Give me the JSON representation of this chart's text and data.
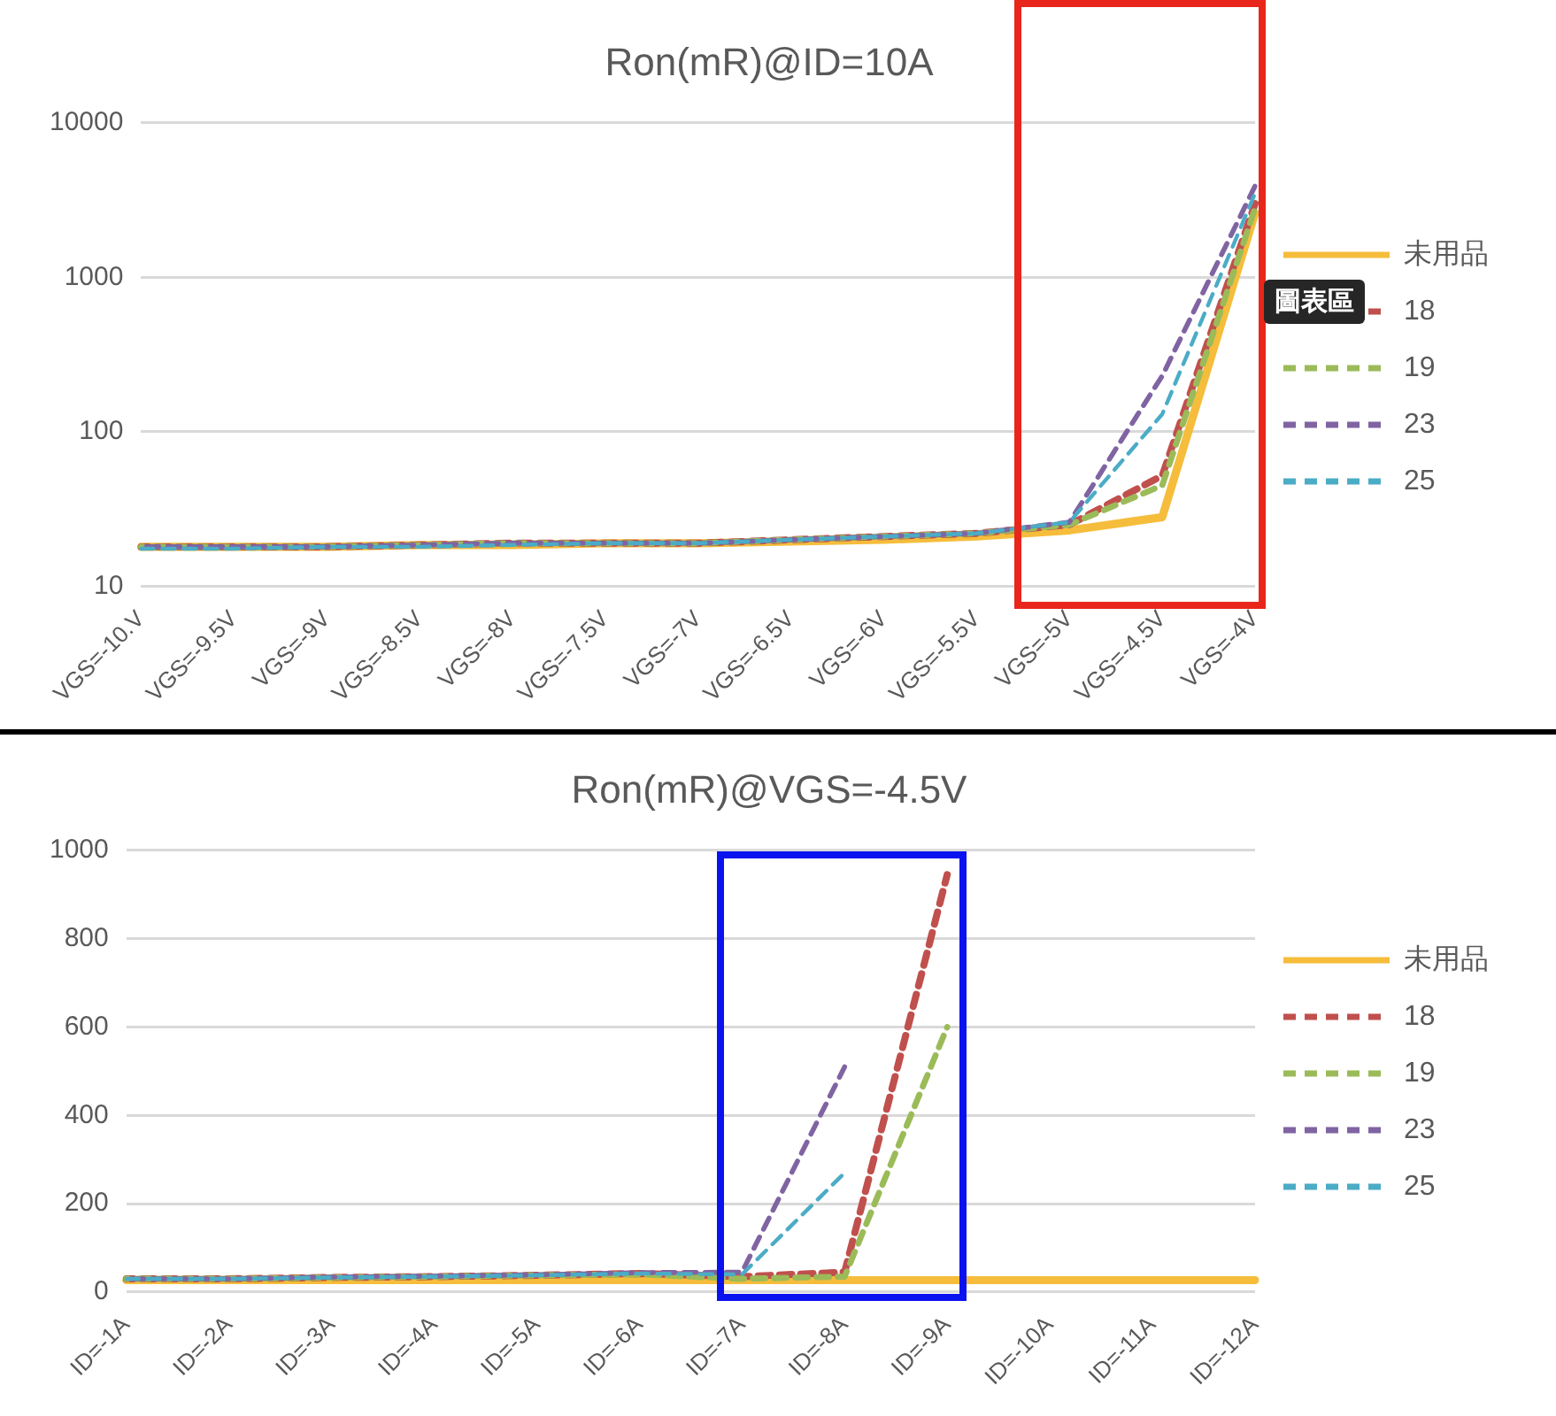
{
  "chart_data": [
    {
      "type": "line",
      "title": "Ron(mR)@ID=10A",
      "categories": [
        "VGS=-10.V",
        "VGS=-9.5V",
        "VGS=-9V",
        "VGS=-8.5V",
        "VGS=-8V",
        "VGS=-7.5V",
        "VGS=-7V",
        "VGS=-6.5V",
        "VGS=-6V",
        "VGS=-5.5V",
        "VGS=-5V",
        "VGS=-4.5V",
        "VGS=-4V"
      ],
      "log": true,
      "ylim": [
        10,
        10000
      ],
      "yticks": [
        10,
        100,
        1000,
        10000
      ],
      "grid": "y",
      "legend": "right",
      "marker": "none",
      "annotations": [
        "圖表區"
      ],
      "series": [
        {
          "name": "未用品",
          "color": "#f5bd3b",
          "line_style": "solid",
          "values": [
            18,
            18,
            18,
            18.5,
            18.5,
            19,
            19,
            19.5,
            20,
            21,
            23,
            28,
            2600
          ]
        },
        {
          "name": "18",
          "color": "#c0504d",
          "line_style": "dashed",
          "values": [
            18,
            18,
            18,
            18.5,
            19,
            19,
            19,
            20,
            21,
            22,
            25,
            52,
            3000
          ]
        },
        {
          "name": "19",
          "color": "#9bbb59",
          "line_style": "dashed",
          "values": [
            18,
            18,
            18,
            18.5,
            19,
            19,
            19,
            20,
            21,
            22,
            25,
            45,
            2800
          ]
        },
        {
          "name": "23",
          "color": "#8064a2",
          "line_style": "dashed",
          "values": [
            18,
            18,
            18,
            18.5,
            19,
            19,
            19,
            20,
            21,
            22,
            26,
            230,
            3900
          ]
        },
        {
          "name": "25",
          "color": "#4bacc6",
          "line_style": "dashed",
          "values": [
            17.5,
            17.5,
            18,
            18,
            18.5,
            19,
            19,
            20,
            21,
            22,
            26,
            130,
            3500
          ]
        }
      ]
    },
    {
      "type": "line",
      "title": "Ron(mR)@VGS=-4.5V",
      "categories": [
        "ID=-1A",
        "ID=-2A",
        "ID=-3A",
        "ID=-4A",
        "ID=-5A",
        "ID=-6A",
        "ID=-7A",
        "ID=-8A",
        "ID=-9A",
        "ID=-10A",
        "ID=-11A",
        "ID=-12A"
      ],
      "ylim": [
        0,
        1000
      ],
      "yticks": [
        0,
        200,
        400,
        600,
        800,
        1000
      ],
      "grid": "y",
      "legend": "right",
      "marker": "none",
      "series": [
        {
          "name": "未用品",
          "color": "#f5bd3b",
          "line_style": "solid",
          "values": [
            27,
            27,
            27,
            27,
            27,
            27,
            27,
            27,
            27,
            27,
            27,
            27
          ]
        },
        {
          "name": "18",
          "color": "#c0504d",
          "line_style": "dashed",
          "values": [
            30,
            30,
            33,
            35,
            38,
            42,
            35,
            45,
            945,
            null,
            null,
            null
          ]
        },
        {
          "name": "19",
          "color": "#9bbb59",
          "line_style": "dashed",
          "values": [
            30,
            30,
            33,
            35,
            38,
            40,
            30,
            35,
            600,
            null,
            null,
            null
          ]
        },
        {
          "name": "23",
          "color": "#8064a2",
          "line_style": "dashed",
          "values": [
            30,
            30,
            34,
            36,
            39,
            44,
            45,
            510,
            null,
            null,
            null,
            null
          ]
        },
        {
          "name": "25",
          "color": "#4bacc6",
          "line_style": "dashed",
          "values": [
            30,
            30,
            33,
            35,
            38,
            42,
            40,
            270,
            null,
            null,
            null,
            null
          ]
        }
      ]
    }
  ]
}
